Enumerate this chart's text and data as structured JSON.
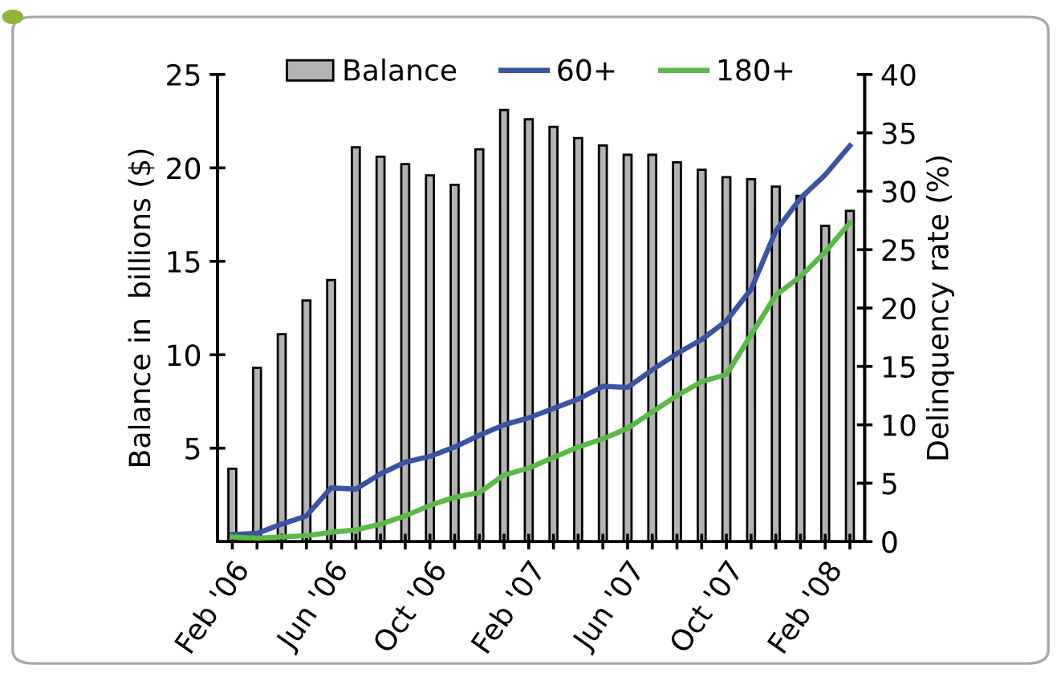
{
  "chart_data": {
    "type": "bar",
    "categories": [
      "Feb '06",
      null,
      null,
      null,
      "Jun '06",
      null,
      null,
      null,
      "Oct '06",
      null,
      null,
      null,
      "Feb '07",
      null,
      null,
      null,
      "Jun '07",
      null,
      null,
      null,
      "Oct '07",
      null,
      null,
      null,
      "Feb '08",
      null
    ],
    "series": [
      {
        "name": "Balance",
        "color": "#b3b3b3",
        "values": [
          3.9,
          9.3,
          11.1,
          12.9,
          14.0,
          21.1,
          20.6,
          20.2,
          19.6,
          19.1,
          21.0,
          23.1,
          22.6,
          22.2,
          21.6,
          21.2,
          20.7,
          20.7,
          20.3,
          19.9,
          19.5,
          19.4,
          19.0,
          18.5,
          16.9,
          17.7
        ]
      },
      {
        "name": "60+",
        "type": "line",
        "axis": "y2",
        "color": "#3a53a4",
        "values": [
          0.6,
          0.7,
          1.5,
          2.2,
          4.6,
          4.5,
          5.8,
          6.8,
          7.3,
          8.1,
          9.1,
          10.0,
          10.6,
          11.4,
          12.2,
          13.3,
          13.2,
          14.7,
          16.1,
          17.3,
          18.9,
          21.6,
          26.6,
          29.4,
          31.4,
          33.9
        ]
      },
      {
        "name": "180+",
        "type": "line",
        "axis": "y2",
        "color": "#5ab947",
        "values": [
          0.4,
          0.3,
          0.4,
          0.5,
          0.8,
          1.0,
          1.5,
          2.2,
          3.1,
          3.8,
          4.2,
          5.7,
          6.3,
          7.2,
          8.1,
          8.8,
          9.7,
          11.1,
          12.5,
          13.7,
          14.3,
          17.7,
          21.1,
          22.7,
          24.8,
          27.3
        ]
      }
    ],
    "ylabel": "Balance in  billions ($)",
    "y2label": "Delinquency rate (%)",
    "ylim": [
      0,
      25
    ],
    "yticks": [
      5,
      10,
      15,
      20,
      25
    ],
    "y2lim": [
      0,
      40
    ],
    "y2ticks": [
      0,
      5,
      10,
      15,
      20,
      25,
      30,
      35,
      40
    ],
    "legend": "top",
    "grid": false,
    "marker": "none",
    "line_style": "solid"
  }
}
